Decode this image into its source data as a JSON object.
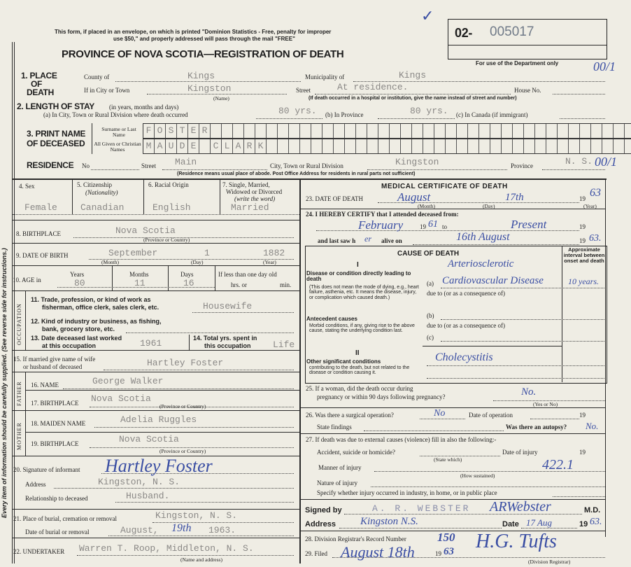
{
  "header": {
    "notice": "This form, if placed in an envelope, on which is printed \"Dominion Statistics - Free, penalty for improper",
    "notice2": "use $50,\" and properly addressed will pass through the mail \"FREE\"",
    "title": "PROVINCE OF NOVA SCOTIA—REGISTRATION OF DEATH",
    "reg_prefix": "02-",
    "reg_number": "005017",
    "dept_note": "For use of the Department only",
    "margin_note": "Every item of information should be carefully supplied. (See reverse side for instructions.)"
  },
  "s1": {
    "label": "1. PLACE",
    "label2": "OF",
    "label3": "DEATH",
    "county_label": "County of",
    "county": "Kings",
    "municipality_label": "Municipality of",
    "municipality": "Kings",
    "city_label": "If in City or Town",
    "city": "Kingston",
    "name_note": "(Name)",
    "street_label": "Street",
    "street": "At residence.",
    "house_label": "House No.",
    "hospital_note": "(If death occurred in a hospital or institution, give the name instead of street and number)",
    "margin_mark": "00/1"
  },
  "s2": {
    "label": "2. LENGTH OF STAY",
    "label_note": "(in years, months and days)",
    "a_label": "(a) In City, Town or Rural Division where death occurred",
    "a": "80 yrs.",
    "b_label": "(b) In Province",
    "b": "80 yrs.",
    "c_label": "(c) In Canada (if immigrant)"
  },
  "s3": {
    "label": "3. PRINT NAME",
    "label2": "OF DECEASED",
    "surname_label": "Surname or Last Name",
    "given_label": "All Given or Christian Names",
    "surname_letters": [
      "F",
      "O",
      "S",
      "T",
      "E",
      "R"
    ],
    "given_letters": [
      "M",
      "A",
      "U",
      "D",
      "E",
      "",
      "C",
      "L",
      "A",
      "R",
      "K"
    ]
  },
  "residence": {
    "label": "RESIDENCE",
    "no_label": "No",
    "street_label": "Street",
    "street": "Main",
    "city_label": "City, Town or Rural Division",
    "city": "Kingston",
    "province_label": "Province",
    "province": "N. S.",
    "note": "(Residence means usual place of abode. Post Office Address for residents in rural parts not sufficient)",
    "margin_mark": "00/1"
  },
  "left": {
    "sex_label": "4. Sex",
    "sex": "Female",
    "cit_label": "5. Citizenship",
    "cit_sub": "(Nationality)",
    "cit": "Canadian",
    "race_label": "6. Racial Origin",
    "race": "English",
    "marital_label": "7. Single, Married,",
    "marital_label2": "Widowed or Divorced",
    "marital_sub": "(write the word)",
    "marital": "Married",
    "birthplace_label": "8. BIRTHPLACE",
    "birthplace": "Nova Scotia",
    "prov_country": "(Province or Country)",
    "dob_label": "9. DATE OF BIRTH",
    "dob_month": "September",
    "dob_day": "1",
    "dob_year": "1882",
    "month_note": "(Month)",
    "day_note": "(Day)",
    "year_note": "(Year)",
    "age_label": "10. AGE in",
    "years_label": "Years",
    "years": "80",
    "months_label": "Months",
    "months": "11",
    "days_label": "Days",
    "days": "16",
    "less_label": "If less than one day old",
    "hrs_label": "hrs. or",
    "min_label": "min.",
    "occupation_side": "OCCUPATION",
    "occ11_label": "11. Trade, profession, or kind of work as",
    "occ11_label2": "fisherman, office clerk, sales clerk, etc.",
    "occ11": "Housewife",
    "occ12_label": "12. Kind of industry or business, as fishing,",
    "occ12_label2": "bank, grocery store, etc.",
    "occ13_label": "13. Date deceased last worked",
    "occ13_label2": "at this occupation",
    "occ13": "1961",
    "occ14_label": "14. Total yrs. spent in",
    "occ14_label2": "this occupation",
    "occ14": "Life",
    "spouse_label": "15. If married give name of wife",
    "spouse_label2": "or husband of deceased",
    "spouse": "Hartley Foster",
    "father_side": "FATHER",
    "father_name_label": "16. NAME",
    "father_name": "George Walker",
    "father_bp_label": "17. BIRTHPLACE",
    "father_bp": "Nova Scotia",
    "mother_side": "MOTHER",
    "mother_name_label": "18. MAIDEN NAME",
    "mother_name": "Adelia Ruggles",
    "mother_bp_label": "19. BIRTHPLACE",
    "mother_bp": "Nova Scotia",
    "informant_label": "20. Signature of informant",
    "informant_sig": "Hartley Foster",
    "address_label": "Address",
    "address": "Kingston, N. S.",
    "relationship_label": "Relationship to deceased",
    "relationship": "Husband.",
    "burial_label": "21. Place of burial, cremation or removal",
    "burial_place": "Kingston, N. S.",
    "burial_date_label": "Date of burial or removal",
    "burial_date": "August,",
    "burial_day": "19th",
    "burial_year": "1963.",
    "undertaker_label": "22. UNDERTAKER",
    "undertaker": "Warren T. Roop, Middleton, N. S.",
    "undertaker_note": "(Name and address)"
  },
  "medical": {
    "title": "MEDICAL CERTIFICATE OF DEATH",
    "dod_label": "23. DATE OF DEATH",
    "dod_month": "August",
    "dod_day": "17th",
    "dod_year_prefix": "19",
    "dod_year": "63",
    "certify_label": "24. I HEREBY CERTIFY that I attended deceased from:",
    "from": "February",
    "from_year": "61",
    "to_label": "to",
    "to": "Present",
    "last_saw_label": "and last saw h",
    "last_saw_her": "er",
    "alive_label": "alive on",
    "last_saw_date": "16th August",
    "last_saw_year": "63.",
    "cause_title": "CAUSE OF DEATH",
    "interval_label": "Approximate interval between onset and death",
    "part1": "I",
    "direct_label": "Disease or condition directly leading to death",
    "direct_note": "(This does not mean the mode of dying, e.g., heart failure, asthenia, etc. It means the disease, injury, or complication which caused death.)",
    "a_label": "(a)",
    "cause_a1": "Arteriosclerotic",
    "cause_a2": "Cardiovascular Disease",
    "interval_a": "10 years.",
    "due_to": "due to (or as a consequence of)",
    "antecedent_label": "Antecedent causes",
    "antecedent_note": "Morbid conditions, if any, giving rise to the above cause, stating the underlying condition last.",
    "b_label": "(b)",
    "c_label": "(c)",
    "part2": "II",
    "other_label": "Other significant conditions",
    "other_note": "contributing to the death, but not related to the disease or condition causing it.",
    "other": "Cholecystitis",
    "q25_label": "25. If a woman, did the death occur during",
    "q25_label2": "pregnancy or within 90 days following pregnancy?",
    "q25": "No.",
    "yes_no": "(Yes or No)",
    "q26_label": "26. Was there a surgical operation?",
    "q26": "No",
    "op_date_label": "Date of operation",
    "findings_label": "State findings",
    "autopsy_label": "Was there an autopsy?",
    "autopsy": "No.",
    "q27_label": "27. If death was due to external causes (violence) fill in also the following:-",
    "accident_label": "Accident, suicide or homicide?",
    "state_which": "(State which)",
    "injury_date_label": "Date of injury",
    "manner_label": "Manner of injury",
    "manner_code": "422.1",
    "how_sustained": "(How sustained)",
    "nature_label": "Nature of injury",
    "place_label": "Specify whether injury occurred in industry, in home, or in public place",
    "signed_label": "Signed by",
    "signed_name": "A. R. WEBSTER",
    "signature": "ARWebster",
    "md": "M.D.",
    "address_label": "Address",
    "address": "Kingston N.S.",
    "date_label": "Date",
    "date": "17 Aug",
    "date_year": "63.",
    "record_label": "28. Division Registrar's Record Number",
    "record_number": "150",
    "filed_label": "29. Filed",
    "filed": "August 18th",
    "filed_year": "63",
    "registrar_sig": "H.G. Tufts",
    "registrar_note": "(Division Registrar)"
  },
  "colors": {
    "paper": "#efede4",
    "typed": "#8a8886",
    "ink": "#3a4ea3"
  }
}
